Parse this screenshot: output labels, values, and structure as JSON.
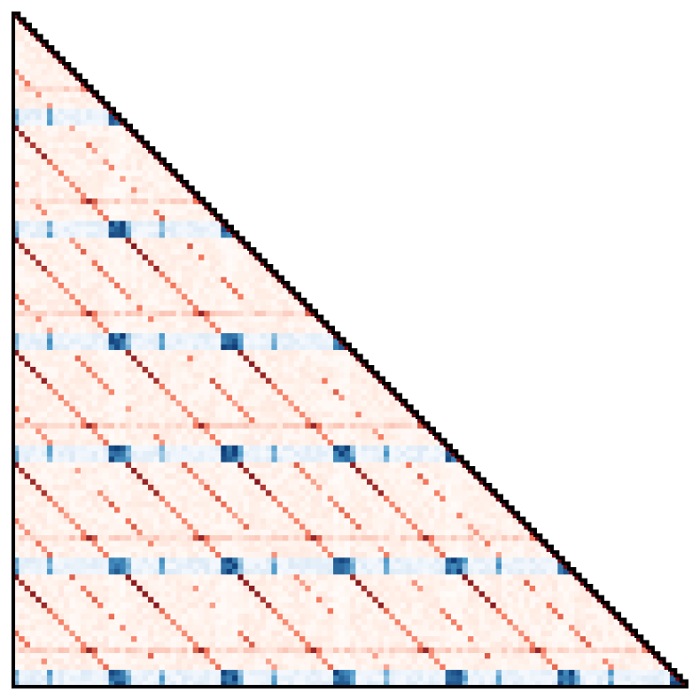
{
  "chart_data": {
    "type": "heatmap",
    "shape": "lower-triangular",
    "n": 120,
    "title": "",
    "xlabel": "",
    "ylabel": "",
    "grid": false,
    "legend": "none",
    "diverging_colormap": {
      "negative_strong": "#08306b",
      "negative_mid": "#4a98c9",
      "negative_light": "#eff5fc",
      "neutral": "#ffffff",
      "positive_light": "#fff0e8",
      "positive_mid": "#f4755a",
      "positive_strong": "#67000d"
    },
    "outline_color": "#000000",
    "block_size": 20,
    "row_groups": [
      {
        "offset_in_block": 0,
        "kind": "diag-lines",
        "values": [
          0.95,
          0.9,
          0.85
        ]
      },
      {
        "offset_in_block": 1,
        "kind": "diag-lines",
        "values": [
          0.9
        ]
      },
      {
        "offset_in_block": 2,
        "kind": "diag-lines",
        "values": [
          0.9
        ]
      },
      {
        "offset_in_block": 3,
        "kind": "diag-lines",
        "values": [
          0.9
        ]
      },
      {
        "offset_in_block": 4,
        "kind": "diag-lines",
        "values": [
          0.85
        ]
      },
      {
        "offset_in_block": 5,
        "kind": "diag-lines",
        "values": [
          0.9
        ]
      },
      {
        "offset_in_block": 6,
        "kind": "diag-lines",
        "values": [
          0.6
        ]
      },
      {
        "offset_in_block": 7,
        "kind": "diag-lines",
        "values": [
          0.5
        ]
      },
      {
        "offset_in_block": 8,
        "kind": "diag-lines",
        "values": [
          0.55
        ]
      },
      {
        "offset_in_block": 9,
        "kind": "diag-lines",
        "values": [
          0.45
        ]
      },
      {
        "offset_in_block": 10,
        "kind": "diag-lines",
        "values": [
          0.5
        ]
      },
      {
        "offset_in_block": 11,
        "kind": "diag-lines",
        "values": [
          0.55
        ]
      },
      {
        "offset_in_block": 12,
        "kind": "diag-lines",
        "values": [
          0.5
        ]
      },
      {
        "offset_in_block": 13,
        "kind": "hot-row",
        "values": [
          0.75
        ]
      },
      {
        "offset_in_block": 14,
        "kind": "diag-lines",
        "values": [
          0.45
        ]
      },
      {
        "offset_in_block": 15,
        "kind": "diag-lines",
        "values": [
          0.55
        ]
      },
      {
        "offset_in_block": 16,
        "kind": "diag-lines",
        "values": [
          0.6
        ]
      },
      {
        "offset_in_block": 17,
        "kind": "cold-row",
        "values": [
          -0.95
        ]
      },
      {
        "offset_in_block": 18,
        "kind": "cold-row",
        "values": [
          -0.85
        ]
      },
      {
        "offset_in_block": 19,
        "kind": "cold-row",
        "values": [
          -0.9
        ]
      }
    ]
  }
}
